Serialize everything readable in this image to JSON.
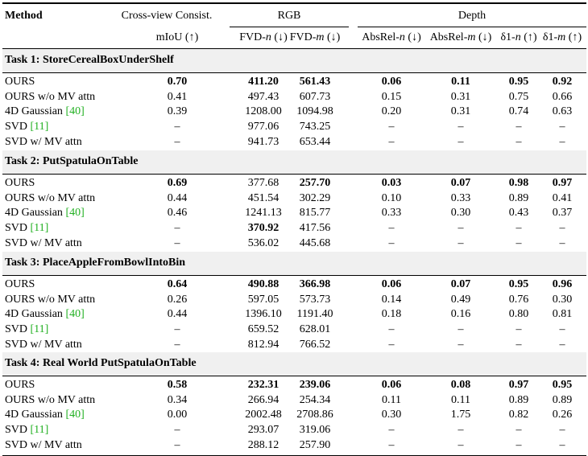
{
  "header": {
    "method": "Method",
    "group_consist": "Cross-view Consist.",
    "group_rgb": "RGB",
    "group_depth": "Depth",
    "columns": [
      "mIoU (↑)",
      "FVD-n (↓)",
      "FVD-m (↓)",
      "AbsRel-n (↓)",
      "AbsRel-m (↓)",
      "δ1-n (↑)",
      "δ1-m (↑)"
    ]
  },
  "sections": [
    {
      "title": "Task 1: StoreCerealBoxUnderShelf",
      "rows": [
        {
          "method": "OURS",
          "ref": "",
          "values": [
            "0.70",
            "411.20",
            "561.43",
            "0.06",
            "0.11",
            "0.95",
            "0.92"
          ],
          "bold": [
            true,
            true,
            true,
            true,
            true,
            true,
            true
          ]
        },
        {
          "method": "OURS w/o MV attn",
          "ref": "",
          "values": [
            "0.41",
            "497.43",
            "607.73",
            "0.15",
            "0.31",
            "0.75",
            "0.66"
          ],
          "bold": [
            false,
            false,
            false,
            false,
            false,
            false,
            false
          ]
        },
        {
          "method": "4D Gaussian ",
          "ref": "[40]",
          "values": [
            "0.39",
            "1208.00",
            "1094.98",
            "0.20",
            "0.31",
            "0.74",
            "0.63"
          ],
          "bold": [
            false,
            false,
            false,
            false,
            false,
            false,
            false
          ]
        },
        {
          "method": "SVD ",
          "ref": "[11]",
          "values": [
            "–",
            "977.06",
            "743.25",
            "–",
            "–",
            "–",
            "–"
          ],
          "bold": [
            false,
            false,
            false,
            false,
            false,
            false,
            false
          ]
        },
        {
          "method": "SVD w/ MV attn",
          "ref": "",
          "values": [
            "–",
            "941.73",
            "653.44",
            "–",
            "–",
            "–",
            "–"
          ],
          "bold": [
            false,
            false,
            false,
            false,
            false,
            false,
            false
          ]
        }
      ]
    },
    {
      "title": "Task 2: PutSpatulaOnTable",
      "rows": [
        {
          "method": "OURS",
          "ref": "",
          "values": [
            "0.69",
            "377.68",
            "257.70",
            "0.03",
            "0.07",
            "0.98",
            "0.97"
          ],
          "bold": [
            true,
            false,
            true,
            true,
            true,
            true,
            true
          ]
        },
        {
          "method": "OURS w/o MV attn",
          "ref": "",
          "values": [
            "0.44",
            "451.54",
            "302.29",
            "0.10",
            "0.33",
            "0.89",
            "0.41"
          ],
          "bold": [
            false,
            false,
            false,
            false,
            false,
            false,
            false
          ]
        },
        {
          "method": "4D Gaussian ",
          "ref": "[40]",
          "values": [
            "0.46",
            "1241.13",
            "815.77",
            "0.33",
            "0.30",
            "0.43",
            "0.37"
          ],
          "bold": [
            false,
            false,
            false,
            false,
            false,
            false,
            false
          ]
        },
        {
          "method": "SVD ",
          "ref": "[11]",
          "values": [
            "–",
            "370.92",
            "417.56",
            "–",
            "–",
            "–",
            "–"
          ],
          "bold": [
            false,
            true,
            false,
            false,
            false,
            false,
            false
          ]
        },
        {
          "method": "SVD w/ MV attn",
          "ref": "",
          "values": [
            "–",
            "536.02",
            "445.68",
            "–",
            "–",
            "–",
            "–"
          ],
          "bold": [
            false,
            false,
            false,
            false,
            false,
            false,
            false
          ]
        }
      ]
    },
    {
      "title": "Task 3: PlaceAppleFromBowlIntoBin",
      "rows": [
        {
          "method": "OURS",
          "ref": "",
          "values": [
            "0.64",
            "490.88",
            "366.98",
            "0.06",
            "0.07",
            "0.95",
            "0.96"
          ],
          "bold": [
            true,
            true,
            true,
            true,
            true,
            true,
            true
          ]
        },
        {
          "method": "OURS w/o MV attn",
          "ref": "",
          "values": [
            "0.26",
            "597.05",
            "573.73",
            "0.14",
            "0.49",
            "0.76",
            "0.30"
          ],
          "bold": [
            false,
            false,
            false,
            false,
            false,
            false,
            false
          ]
        },
        {
          "method": "4D Gaussian ",
          "ref": "[40]",
          "values": [
            "0.44",
            "1396.10",
            "1191.40",
            "0.18",
            "0.16",
            "0.80",
            "0.81"
          ],
          "bold": [
            false,
            false,
            false,
            false,
            false,
            false,
            false
          ]
        },
        {
          "method": "SVD ",
          "ref": "[11]",
          "values": [
            "–",
            "659.52",
            "628.01",
            "–",
            "–",
            "–",
            "–"
          ],
          "bold": [
            false,
            false,
            false,
            false,
            false,
            false,
            false
          ]
        },
        {
          "method": "SVD w/ MV attn",
          "ref": "",
          "values": [
            "–",
            "812.94",
            "766.52",
            "–",
            "–",
            "–",
            "–"
          ],
          "bold": [
            false,
            false,
            false,
            false,
            false,
            false,
            false
          ]
        }
      ]
    },
    {
      "title": "Task 4: Real World PutSpatulaOnTable",
      "rows": [
        {
          "method": "OURS",
          "ref": "",
          "values": [
            "0.58",
            "232.31",
            "239.06",
            "0.06",
            "0.08",
            "0.97",
            "0.95"
          ],
          "bold": [
            true,
            true,
            true,
            true,
            true,
            true,
            true
          ]
        },
        {
          "method": "OURS w/o MV attn",
          "ref": "",
          "values": [
            "0.34",
            "266.94",
            "254.34",
            "0.11",
            "0.11",
            "0.89",
            "0.89"
          ],
          "bold": [
            false,
            false,
            false,
            false,
            false,
            false,
            false
          ]
        },
        {
          "method": "4D Gaussian ",
          "ref": "[40]",
          "values": [
            "0.00",
            "2002.48",
            "2708.86",
            "0.30",
            "1.75",
            "0.82",
            "0.26"
          ],
          "bold": [
            false,
            false,
            false,
            false,
            false,
            false,
            false
          ]
        },
        {
          "method": "SVD ",
          "ref": "[11]",
          "values": [
            "–",
            "293.07",
            "319.06",
            "–",
            "–",
            "–",
            "–"
          ],
          "bold": [
            false,
            false,
            false,
            false,
            false,
            false,
            false
          ]
        },
        {
          "method": "SVD w/ MV attn",
          "ref": "",
          "values": [
            "–",
            "288.12",
            "257.90",
            "–",
            "–",
            "–",
            "–"
          ],
          "bold": [
            false,
            false,
            false,
            false,
            false,
            false,
            false
          ]
        }
      ]
    }
  ]
}
